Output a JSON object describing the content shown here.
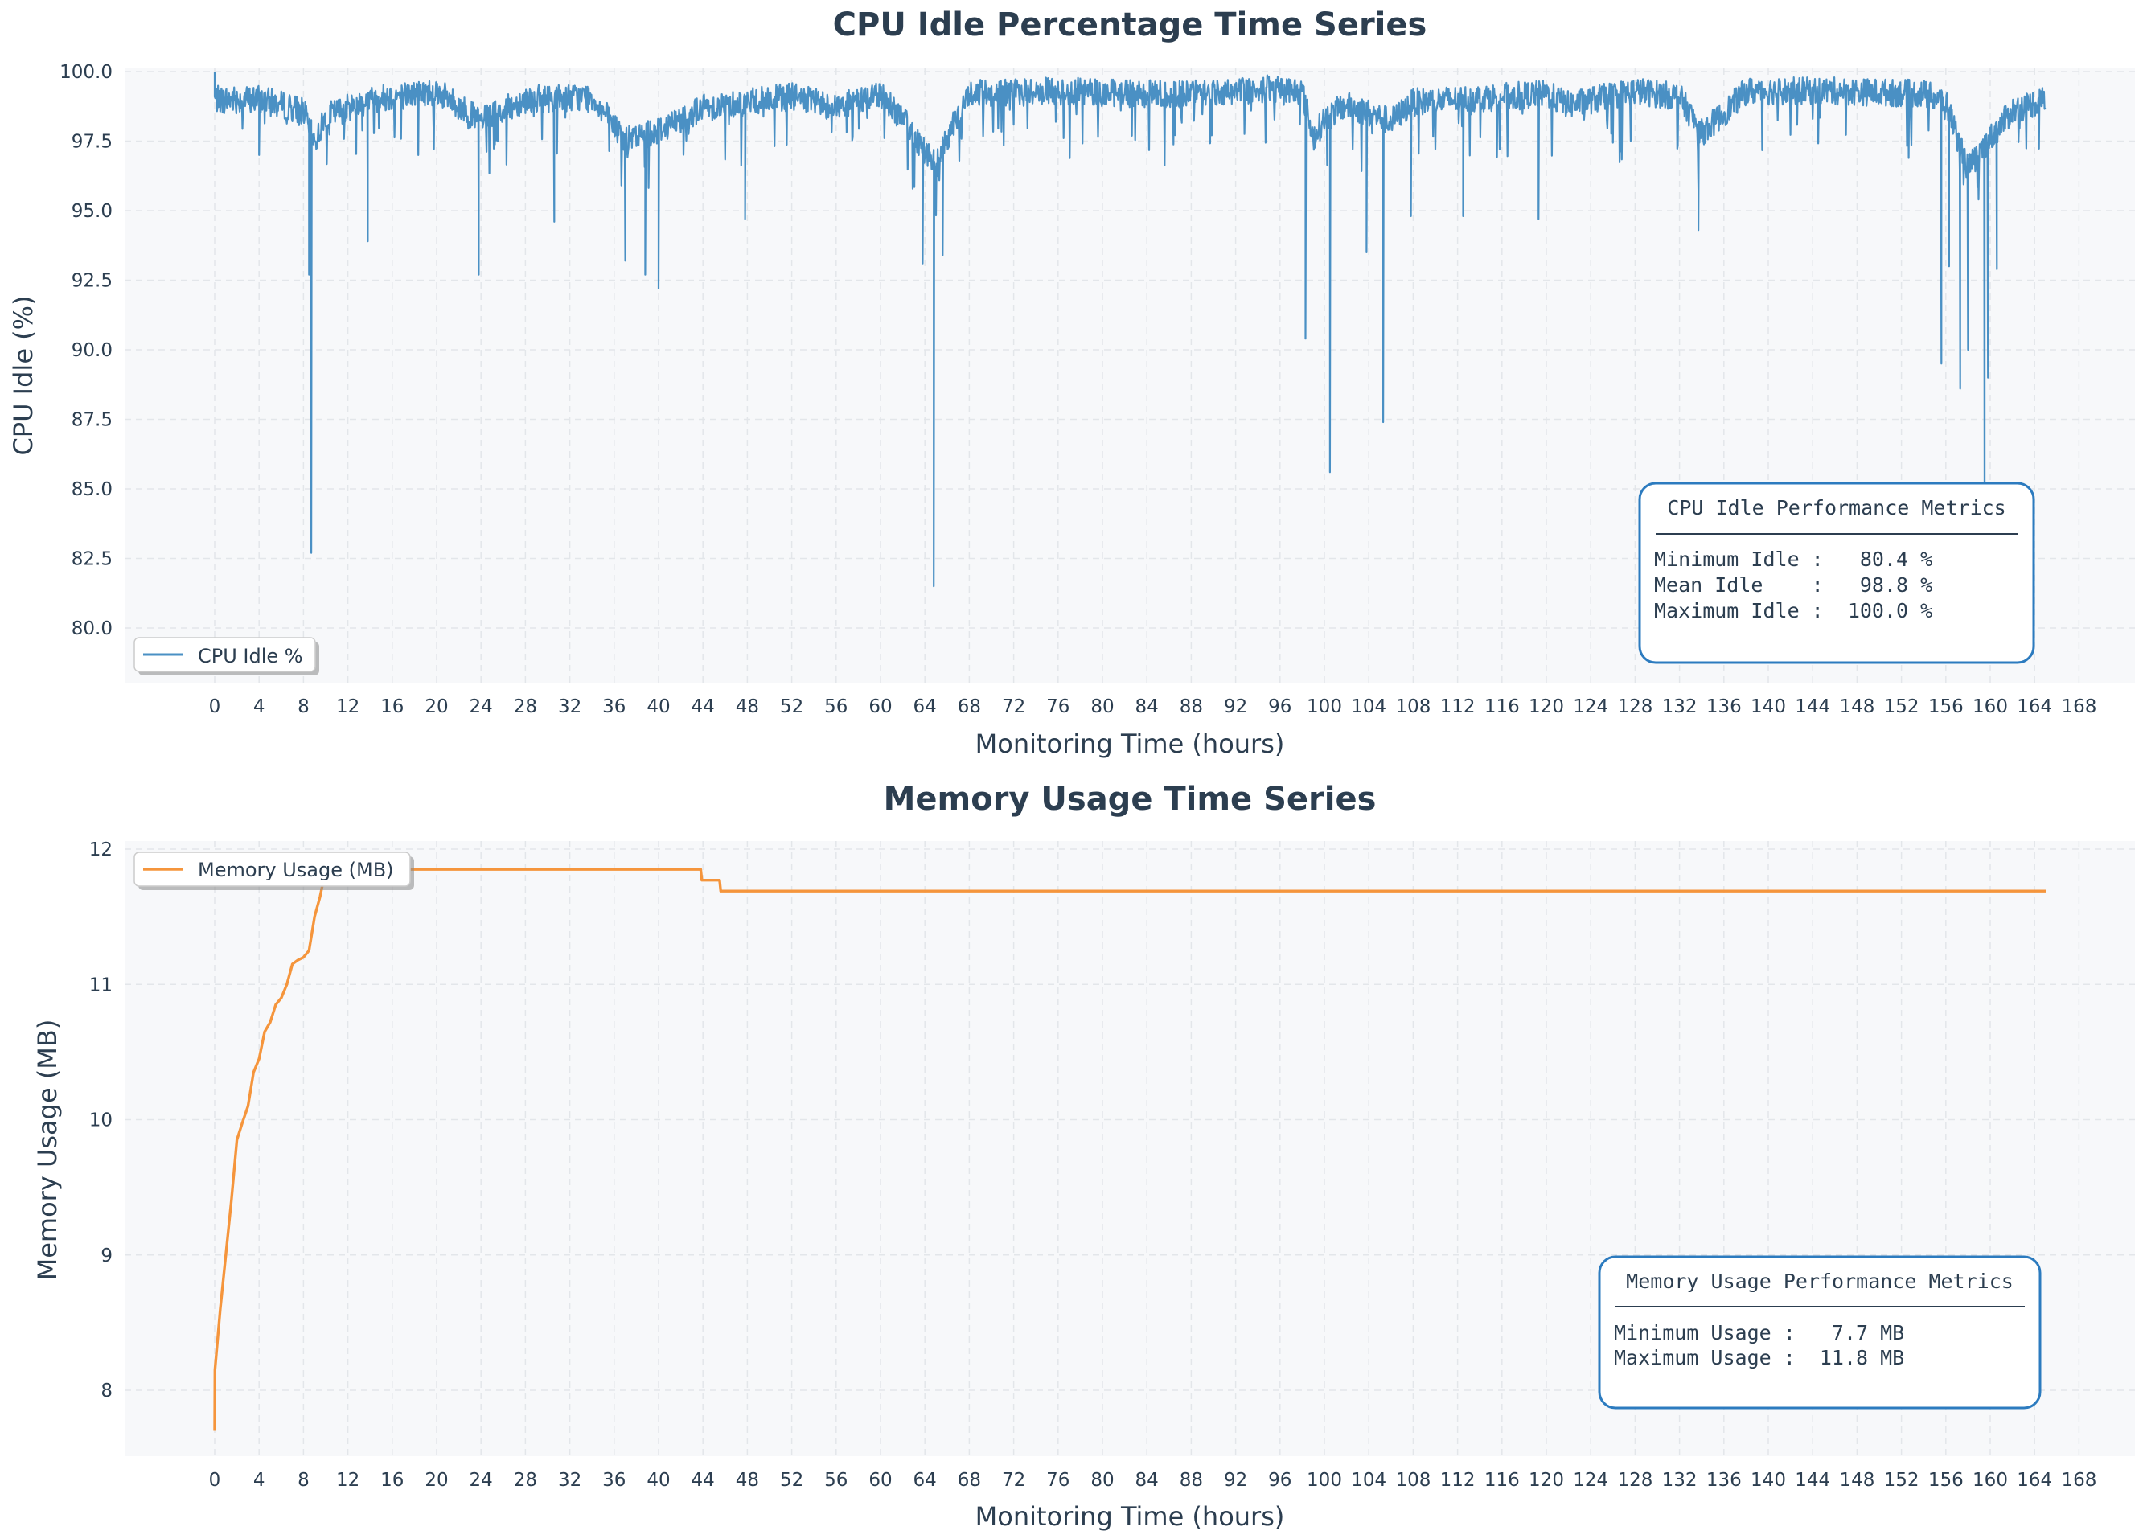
{
  "chart_data": [
    {
      "type": "line",
      "title": "CPU Idle Percentage Time Series",
      "xlabel": "Monitoring Time (hours)",
      "ylabel": "CPU Idle (%)",
      "xlim": [
        -4,
        170
      ],
      "ylim": [
        78,
        100
      ],
      "x_ticks": [
        0,
        4,
        8,
        12,
        16,
        20,
        24,
        28,
        32,
        36,
        40,
        44,
        48,
        52,
        56,
        60,
        64,
        68,
        72,
        76,
        80,
        84,
        88,
        92,
        96,
        100,
        104,
        108,
        112,
        116,
        120,
        124,
        128,
        132,
        136,
        140,
        144,
        148,
        152,
        156,
        160,
        164,
        168
      ],
      "y_ticks": [
        "80.0",
        "82.5",
        "85.0",
        "87.5",
        "90.0",
        "92.5",
        "95.0",
        "97.5",
        "100.0"
      ],
      "grid": true,
      "legend_placement": "lower-left",
      "color": "#4a90c4",
      "series": [
        {
          "name": "CPU Idle %",
          "baseline": [
            [
              0,
              99.0
            ],
            [
              4,
              99.0
            ],
            [
              8,
              98.6
            ],
            [
              9,
              97.4
            ],
            [
              10,
              98.4
            ],
            [
              14,
              99.0
            ],
            [
              20,
              99.3
            ],
            [
              24,
              98.2
            ],
            [
              28,
              99.0
            ],
            [
              34,
              99.1
            ],
            [
              37,
              97.5
            ],
            [
              40,
              97.9
            ],
            [
              44,
              98.7
            ],
            [
              52,
              99.1
            ],
            [
              56,
              98.7
            ],
            [
              60,
              99.2
            ],
            [
              62,
              98.3
            ],
            [
              65,
              96.6
            ],
            [
              66,
              97.6
            ],
            [
              68,
              99.2
            ],
            [
              76,
              99.3
            ],
            [
              84,
              99.2
            ],
            [
              88,
              99.2
            ],
            [
              96,
              99.4
            ],
            [
              98,
              99.3
            ],
            [
              99,
              97.6
            ],
            [
              100,
              98.3
            ],
            [
              102,
              98.8
            ],
            [
              106,
              98.2
            ],
            [
              108,
              98.9
            ],
            [
              120,
              99.2
            ],
            [
              122,
              98.8
            ],
            [
              128,
              99.3
            ],
            [
              132,
              99.1
            ],
            [
              134,
              97.8
            ],
            [
              136,
              98.5
            ],
            [
              138,
              99.3
            ],
            [
              146,
              99.3
            ],
            [
              154,
              99.2
            ],
            [
              156,
              98.9
            ],
            [
              158,
              96.5
            ],
            [
              160,
              97.6
            ],
            [
              162,
              98.6
            ],
            [
              165,
              99.0
            ]
          ],
          "spikes": [
            [
              0,
              100.0
            ],
            [
              4,
              97.0
            ],
            [
              8.5,
              92.7
            ],
            [
              8.7,
              82.7
            ],
            [
              13.8,
              93.9
            ],
            [
              23.8,
              92.7
            ],
            [
              30.6,
              94.6
            ],
            [
              37,
              93.2
            ],
            [
              38.8,
              92.7
            ],
            [
              40,
              92.2
            ],
            [
              47.8,
              94.7
            ],
            [
              63.8,
              93.1
            ],
            [
              64.8,
              81.5
            ],
            [
              65.6,
              93.4
            ],
            [
              98.3,
              90.4
            ],
            [
              100.5,
              85.6
            ],
            [
              103.8,
              93.5
            ],
            [
              105.3,
              87.4
            ],
            [
              107.8,
              94.8
            ],
            [
              112.5,
              94.8
            ],
            [
              119.3,
              94.7
            ],
            [
              133.7,
              94.3
            ],
            [
              155.6,
              89.5
            ],
            [
              156.3,
              93
            ],
            [
              157.3,
              88.6
            ],
            [
              158,
              90.0
            ],
            [
              159.5,
              81.8
            ],
            [
              159.8,
              89.0
            ],
            [
              160.6,
              92.9
            ]
          ],
          "jitter_amplitude": 0.5
        }
      ],
      "metrics_box": {
        "title": "CPU Idle Performance Metrics",
        "lines": [
          "Minimum Idle :   80.4 %",
          "Mean Idle    :   98.8 %",
          "Maximum Idle :  100.0 %"
        ]
      }
    },
    {
      "type": "line",
      "title": "Memory Usage Time Series",
      "xlabel": "Monitoring Time (hours)",
      "ylabel": "Memory Usage (MB)",
      "xlim": [
        -4,
        170
      ],
      "ylim": [
        7.5,
        12
      ],
      "x_ticks": [
        0,
        4,
        8,
        12,
        16,
        20,
        24,
        28,
        32,
        36,
        40,
        44,
        48,
        52,
        56,
        60,
        64,
        68,
        72,
        76,
        80,
        84,
        88,
        92,
        96,
        100,
        104,
        108,
        112,
        116,
        120,
        124,
        128,
        132,
        136,
        140,
        144,
        148,
        152,
        156,
        160,
        164,
        168
      ],
      "y_ticks": [
        "8",
        "9",
        "10",
        "11",
        "12"
      ],
      "grid": true,
      "legend_placement": "upper-left",
      "color": "#f5953c",
      "series": [
        {
          "name": "Memory Usage (MB)",
          "points": [
            [
              0,
              7.7
            ],
            [
              0.02,
              8.15
            ],
            [
              0.5,
              8.6
            ],
            [
              1,
              9.0
            ],
            [
              1.5,
              9.4
            ],
            [
              2,
              9.85
            ],
            [
              2.5,
              9.98
            ],
            [
              3,
              10.1
            ],
            [
              3.5,
              10.35
            ],
            [
              4,
              10.45
            ],
            [
              4.5,
              10.65
            ],
            [
              5,
              10.72
            ],
            [
              5.5,
              10.85
            ],
            [
              6,
              10.9
            ],
            [
              6.5,
              11.0
            ],
            [
              7,
              11.15
            ],
            [
              7.5,
              11.18
            ],
            [
              8,
              11.2
            ],
            [
              8.5,
              11.25
            ],
            [
              9,
              11.5
            ],
            [
              9.5,
              11.65
            ],
            [
              10,
              11.85
            ],
            [
              43.8,
              11.85
            ],
            [
              43.9,
              11.77
            ],
            [
              45.5,
              11.77
            ],
            [
              45.6,
              11.69
            ],
            [
              165,
              11.69
            ]
          ]
        }
      ],
      "metrics_box": {
        "title": "Memory Usage Performance Metrics",
        "lines": [
          "Minimum Usage :   7.7 MB",
          "Maximum Usage :  11.8 MB"
        ]
      }
    }
  ]
}
